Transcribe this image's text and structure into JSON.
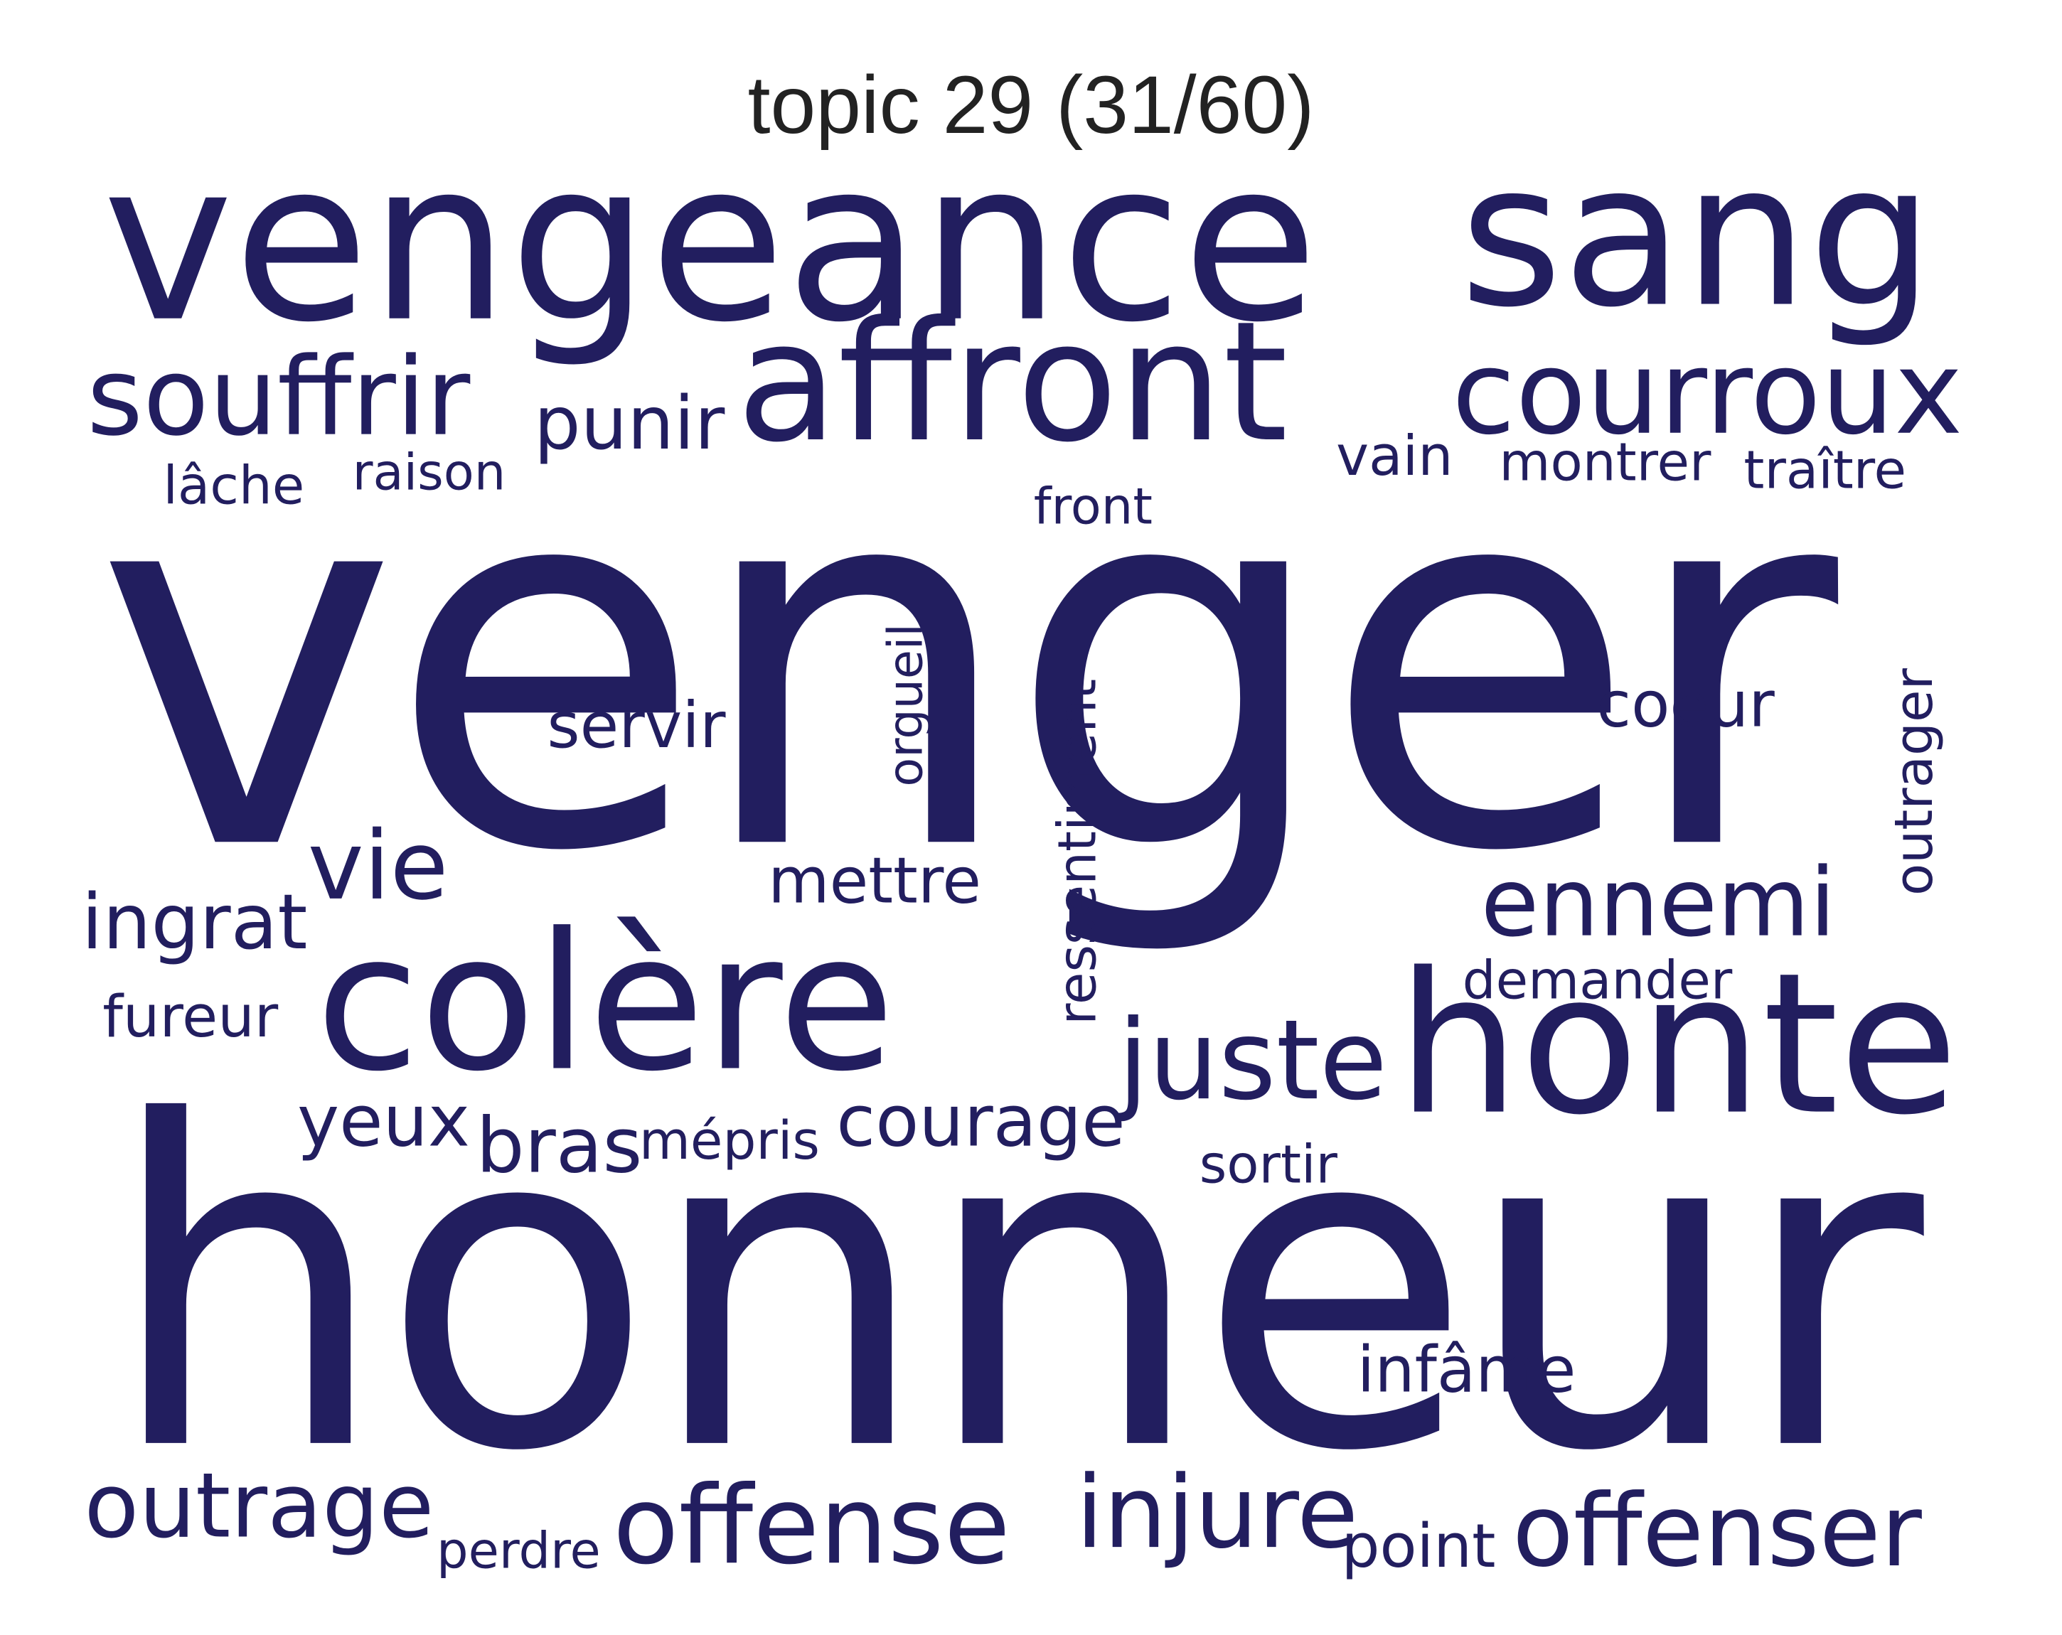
{
  "title": "topic 29 (31/60)",
  "word_color": "#221e5f",
  "words": {
    "venger": "venger",
    "honneur": "honneur",
    "vengeance": "vengeance",
    "sang": "sang",
    "affront": "affront",
    "courroux": "courroux",
    "souffrir": "souffrir",
    "punir": "punir",
    "colere": "colère",
    "honte": "honte",
    "juste": "juste",
    "ennemi": "ennemi",
    "vie": "vie",
    "ingrat": "ingrat",
    "offense": "offense",
    "offenser": "offenser",
    "outrage": "outrage",
    "injure": "injure",
    "courage": "courage",
    "yeux": "yeux",
    "bras": "bras",
    "mepris": "mépris",
    "mettre": "mettre",
    "servir": "servir",
    "coeur": "coeur",
    "vain": "vain",
    "montrer": "montrer",
    "traitre": "traître",
    "lache": "lâche",
    "raison": "raison",
    "front": "front",
    "fureur": "fureur",
    "demander": "demander",
    "sortir": "sortir",
    "infame": "infâme",
    "perdre": "perdre",
    "point": "point",
    "orgueil": "orgueil",
    "ressentiment": "ressentiment",
    "outrager": "outrager"
  }
}
